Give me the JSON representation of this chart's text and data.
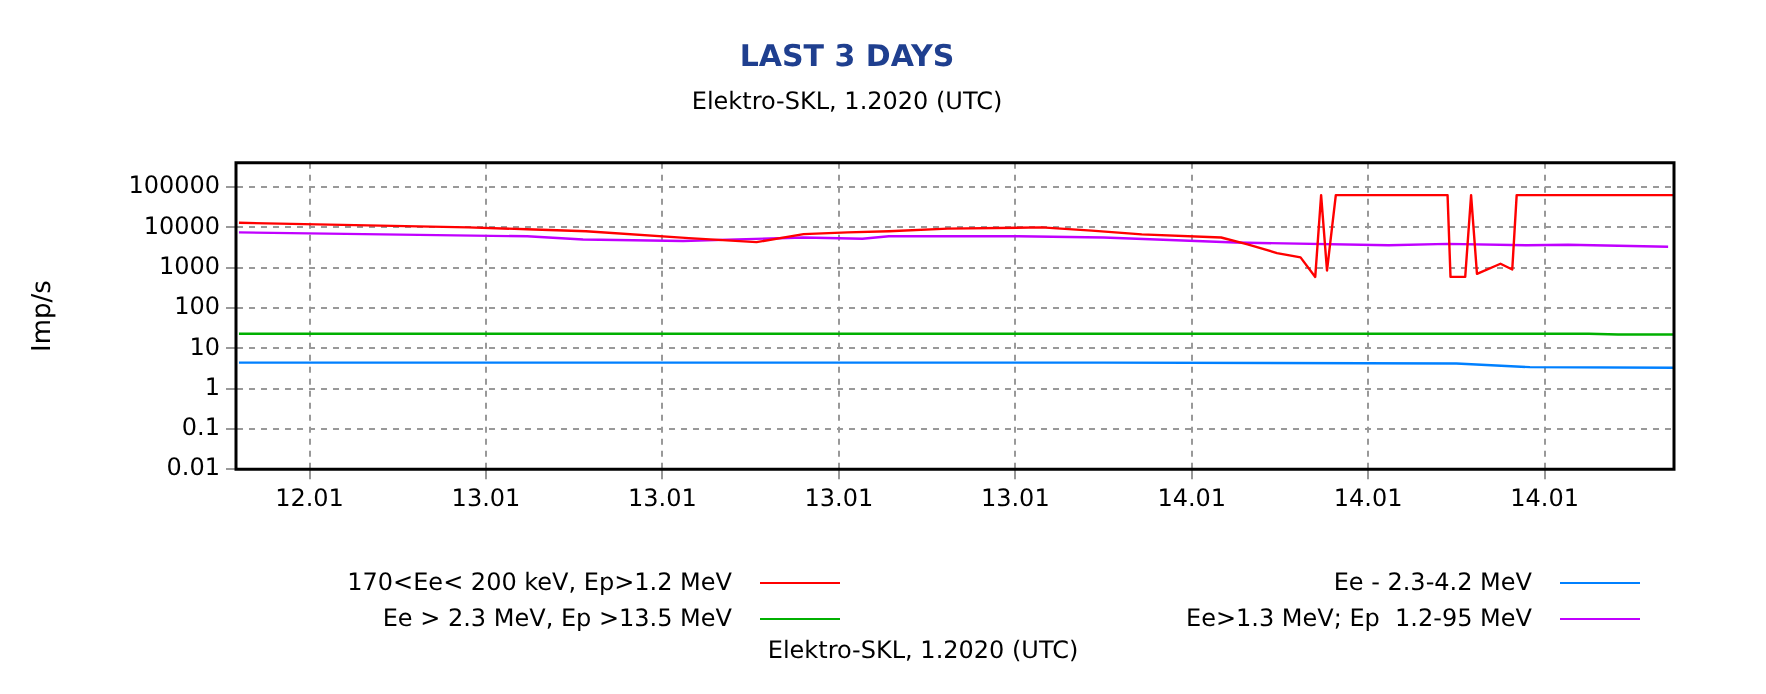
{
  "chart_data": {
    "type": "line",
    "title": "LAST 3 DAYS",
    "subtitle": "Elektro-SKL, 1.2020 (UTC)",
    "annotations": [
      "Elektro-SKL, 1.2020 (UTC)"
    ],
    "ylabel": "Imp/s",
    "log": "y",
    "grid": true,
    "legend": "bottom",
    "marker": "none",
    "line_style": "solid",
    "xlim": [
      "2020-01-12T15:30",
      "2020-01-14T16:24"
    ],
    "xticks": [
      {
        "value": "2020-01-12T18:00",
        "label": "12.01"
      },
      {
        "value": "2020-01-13T00:00",
        "label": "13.01"
      },
      {
        "value": "2020-01-13T06:00",
        "label": "13.01"
      },
      {
        "value": "2020-01-13T12:00",
        "label": "13.01"
      },
      {
        "value": "2020-01-13T18:00",
        "label": "13.01"
      },
      {
        "value": "2020-01-14T00:00",
        "label": "14.01"
      },
      {
        "value": "2020-01-14T06:00",
        "label": "14.01"
      },
      {
        "value": "2020-01-14T12:00",
        "label": "14.01"
      }
    ],
    "ylim": [
      0.01,
      400000
    ],
    "yticks": [
      0.01,
      0.1,
      1,
      10,
      100,
      1000,
      10000,
      100000
    ],
    "series": [
      {
        "name": "170<Ee< 200 keV, Ep>1.2 MeV",
        "color": "#ff0000",
        "x": [
          "2020-01-12T15:36",
          "2020-01-12T23:24",
          "2020-01-13T01:24",
          "2020-01-13T03:24",
          "2020-01-13T06:54",
          "2020-01-13T09:12",
          "2020-01-13T10:48",
          "2020-01-13T12:18",
          "2020-01-13T13:42",
          "2020-01-13T15:42",
          "2020-01-13T18:54",
          "2020-01-13T20:36",
          "2020-01-13T22:18",
          "2020-01-14T01:00",
          "2020-01-14T01:54",
          "2020-01-14T02:54",
          "2020-01-14T03:42",
          "2020-01-14T04:12",
          "2020-01-14T04:24",
          "2020-01-14T04:36",
          "2020-01-14T04:54",
          "2020-01-14T08:42",
          "2020-01-14T08:48",
          "2020-01-14T09:18",
          "2020-01-14T09:30",
          "2020-01-14T09:42",
          "2020-01-14T10:30",
          "2020-01-14T10:54",
          "2020-01-14T11:03",
          "2020-01-14T16:24"
        ],
        "values": [
          13000,
          10000,
          9000,
          8000,
          5400,
          4300,
          6800,
          7500,
          8000,
          9300,
          10000,
          8300,
          6700,
          5600,
          3800,
          2300,
          1800,
          590,
          63000,
          850,
          63000,
          63000,
          590,
          590,
          63000,
          700,
          1250,
          900,
          63000,
          63000
        ]
      },
      {
        "name": "Ee - 2.3-4.2 MeV",
        "color": "#0080ff",
        "x": [
          "2020-01-12T15:36",
          "2020-01-13T06:00",
          "2020-01-13T21:00",
          "2020-01-14T09:00",
          "2020-01-14T11:30",
          "2020-01-14T16:24"
        ],
        "values": [
          4.4,
          4.4,
          4.4,
          4.2,
          3.4,
          3.3
        ]
      },
      {
        "name": "Ee > 2.3 MeV, Ep >13.5 MeV",
        "color": "#00b000",
        "x": [
          "2020-01-12T15:36",
          "2020-01-13T16:00",
          "2020-01-14T13:30",
          "2020-01-14T14:30",
          "2020-01-14T16:24"
        ],
        "values": [
          23,
          23,
          23,
          22,
          22
        ]
      },
      {
        "name": "Ee>1.3 MeV; Ep  1.2-95 MeV",
        "color": "#c000ff",
        "x": [
          "2020-01-12T15:36",
          "2020-01-13T01:24",
          "2020-01-13T03:18",
          "2020-01-13T06:42",
          "2020-01-13T10:48",
          "2020-01-13T12:48",
          "2020-01-13T13:42",
          "2020-01-13T18:06",
          "2020-01-13T21:00",
          "2020-01-14T01:30",
          "2020-01-14T06:42",
          "2020-01-14T08:42",
          "2020-01-14T11:24",
          "2020-01-14T12:48",
          "2020-01-14T16:12"
        ],
        "values": [
          7500,
          6000,
          5000,
          4600,
          5600,
          5200,
          6000,
          6000,
          5600,
          4200,
          3600,
          3900,
          3600,
          3700,
          3300
        ]
      }
    ]
  }
}
